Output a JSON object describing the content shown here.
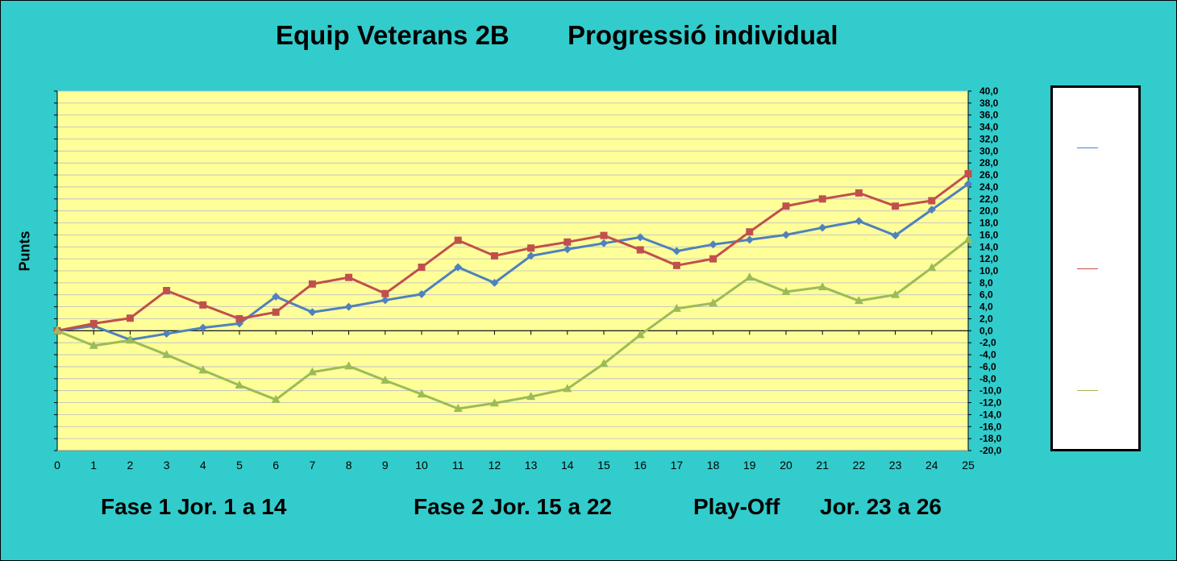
{
  "title": {
    "left": "Equip Veterans 2B",
    "right": "Progressió individual"
  },
  "footer": {
    "phase1": "Fase 1 Jor. 1 a 14",
    "phase2": "Fase 2 Jor. 15 a 22",
    "playoff": "Play-Off",
    "playoff_range": "Jor. 23 a 26"
  },
  "colors": {
    "background": "#33CCCC",
    "plot_area": "#FFFF99",
    "series1": "#4F81BD",
    "series2": "#C0504D",
    "series3": "#9BBB59"
  },
  "chart_data": {
    "type": "line",
    "ylabel": "Punts",
    "xlabel": "",
    "x": [
      0,
      1,
      2,
      3,
      4,
      5,
      6,
      7,
      8,
      9,
      10,
      11,
      12,
      13,
      14,
      15,
      16,
      17,
      18,
      19,
      20,
      21,
      22,
      23,
      24,
      25
    ],
    "xlim": [
      0,
      25
    ],
    "ylim": [
      -20,
      40
    ],
    "ytick_step": 2,
    "grid": true,
    "legend_position": "right",
    "series": [
      {
        "color": "#4F81BD",
        "marker": "diamond",
        "values": [
          0,
          0.8,
          -1.5,
          -0.5,
          0.5,
          1.2,
          5.7,
          3.1,
          4,
          5.1,
          6.1,
          10.6,
          8,
          12.5,
          13.6,
          14.6,
          15.6,
          13.3,
          14.4,
          15.2,
          16,
          17.2,
          18.3,
          15.9,
          20.2,
          24.5
        ]
      },
      {
        "color": "#C0504D",
        "marker": "square",
        "values": [
          0,
          1.2,
          2.1,
          6.7,
          4.3,
          2,
          3.1,
          7.8,
          8.9,
          6.2,
          10.6,
          15.1,
          12.5,
          13.8,
          14.8,
          15.9,
          13.5,
          10.9,
          12,
          16.5,
          20.8,
          22,
          23,
          20.8,
          21.7,
          26.2
        ]
      },
      {
        "color": "#9BBB59",
        "marker": "triangle",
        "values": [
          0,
          -2.5,
          -1.6,
          -4,
          -6.6,
          -9.1,
          -11.5,
          -6.9,
          -5.9,
          -8.3,
          -10.6,
          -13,
          -12.1,
          -11,
          -9.7,
          -5.5,
          -0.7,
          3.7,
          4.6,
          8.9,
          6.5,
          7.3,
          5,
          6,
          10.5,
          15.2
        ]
      }
    ]
  }
}
